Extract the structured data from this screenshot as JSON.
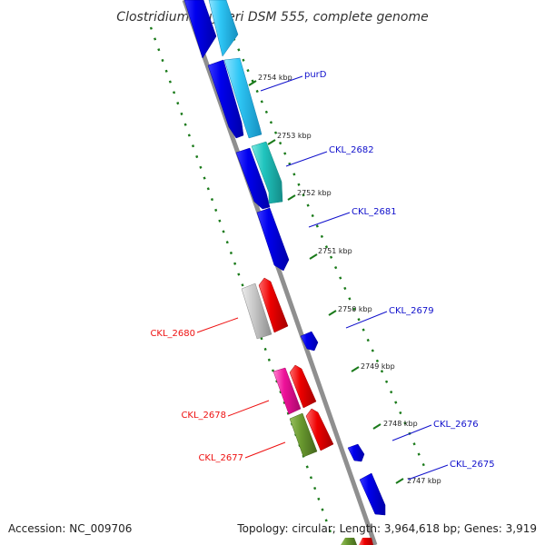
{
  "title": "Clostridium kluyveri DSM 555, complete genome",
  "colors": {
    "backbone": "#909090",
    "ruler": "#1a7a1a",
    "label_forward": "#1010cc",
    "label_reverse": "#ee1111"
  },
  "kbp_markers": [
    {
      "label": "2754 kbp"
    },
    {
      "label": "2753 kbp"
    },
    {
      "label": "2752 kbp"
    },
    {
      "label": "2751 kbp"
    },
    {
      "label": "2750 kbp"
    },
    {
      "label": "2749 kbp"
    },
    {
      "label": "2748 kbp"
    },
    {
      "label": "2747 kbp"
    }
  ],
  "gene_labels": [
    {
      "text": "purD",
      "strand": "forward"
    },
    {
      "text": "CKL_2682",
      "strand": "forward"
    },
    {
      "text": "CKL_2681",
      "strand": "forward"
    },
    {
      "text": "CKL_2679",
      "strand": "forward"
    },
    {
      "text": "CKL_2680",
      "strand": "reverse"
    },
    {
      "text": "CKL_2678",
      "strand": "reverse"
    },
    {
      "text": "CKL_2676",
      "strand": "forward"
    },
    {
      "text": "CKL_2677",
      "strand": "reverse"
    },
    {
      "text": "CKL_2675",
      "strand": "forward"
    }
  ],
  "footer": {
    "accession": "Accession: NC_009706",
    "summary": "Topology: circular; Length: 3,964,618 bp; Genes: 3,919"
  }
}
